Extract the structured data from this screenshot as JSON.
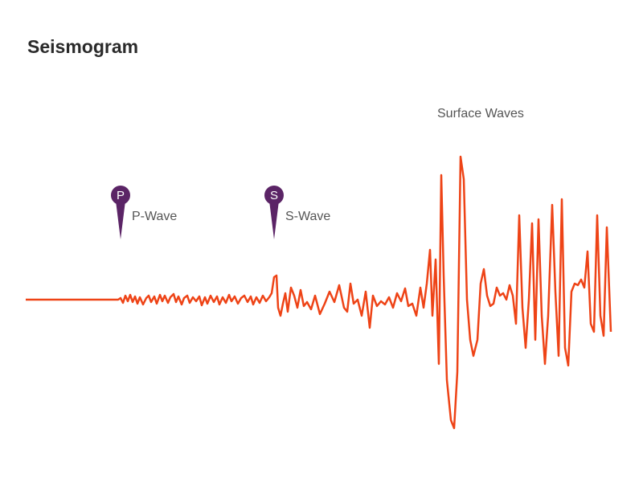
{
  "chart_data": {
    "type": "line",
    "title": "Seismogram",
    "annotation": "Surface Waves",
    "color": "#ee4316",
    "pin_color": "#5b2466",
    "markers": [
      {
        "pin": "P",
        "label": "P-Wave",
        "x": 118
      },
      {
        "pin": "S",
        "label": "S-Wave",
        "x": 309
      }
    ],
    "xlim": [
      0,
      728
    ],
    "ylim": [
      -200,
      200
    ],
    "x": [
      0,
      115,
      118,
      121,
      124,
      127,
      130,
      133,
      136,
      139,
      142,
      146,
      150,
      153,
      156,
      160,
      163,
      167,
      170,
      173,
      177,
      180,
      184,
      187,
      190,
      194,
      197,
      201,
      204,
      208,
      212,
      216,
      219,
      223,
      226,
      230,
      234,
      238,
      241,
      245,
      249,
      253,
      256,
      260,
      264,
      268,
      272,
      276,
      280,
      283,
      287,
      291,
      295,
      299,
      303,
      306,
      309,
      312,
      314,
      317,
      320,
      323,
      326,
      330,
      334,
      338,
      342,
      346,
      350,
      355,
      360,
      366,
      372,
      378,
      384,
      390,
      396,
      400,
      404,
      408,
      413,
      418,
      423,
      428,
      432,
      437,
      442,
      447,
      452,
      457,
      462,
      467,
      472,
      476,
      481,
      486,
      491,
      495,
      499,
      503,
      506,
      510,
      514,
      517,
      520,
      524,
      529,
      533,
      537,
      541,
      545,
      549,
      553,
      557,
      562,
      566,
      570,
      574,
      578,
      582,
      586,
      590,
      594,
      598,
      602,
      606,
      610,
      614,
      618,
      622,
      626,
      630,
      634,
      638,
      642,
      646,
      650,
      655,
      659,
      663,
      667,
      671,
      675,
      679,
      683,
      687,
      691,
      695,
      699,
      703,
      707,
      711,
      715,
      719,
      723,
      728
    ],
    "values": [
      0,
      0,
      2,
      -4,
      5,
      -2,
      6,
      -3,
      4,
      -5,
      3,
      -6,
      2,
      5,
      -3,
      4,
      -5,
      6,
      -2,
      5,
      -4,
      3,
      7,
      -3,
      4,
      -6,
      2,
      5,
      -4,
      3,
      -2,
      4,
      -7,
      3,
      -5,
      5,
      -3,
      4,
      -6,
      3,
      -4,
      6,
      -2,
      4,
      -5,
      2,
      5,
      -3,
      4,
      -6,
      3,
      -4,
      5,
      -2,
      3,
      8,
      28,
      30,
      -10,
      -20,
      -5,
      8,
      -15,
      15,
      5,
      -10,
      12,
      -8,
      -3,
      -12,
      5,
      -18,
      -5,
      10,
      -3,
      18,
      -10,
      -15,
      20,
      -5,
      0,
      -20,
      10,
      -35,
      5,
      -8,
      -2,
      -6,
      3,
      -10,
      8,
      -2,
      14,
      -8,
      -5,
      -20,
      15,
      -10,
      20,
      62,
      -20,
      50,
      -80,
      155,
      30,
      -100,
      -150,
      -160,
      -90,
      178,
      150,
      0,
      -50,
      -70,
      -50,
      20,
      38,
      5,
      -8,
      -5,
      15,
      5,
      8,
      0,
      18,
      5,
      -30,
      105,
      -10,
      -60,
      0,
      95,
      -50,
      100,
      -20,
      -80,
      -20,
      118,
      10,
      -70,
      125,
      -60,
      -82,
      10,
      20,
      18,
      25,
      15,
      60,
      -30,
      -40,
      105,
      -20,
      -45,
      90,
      -40
    ]
  }
}
